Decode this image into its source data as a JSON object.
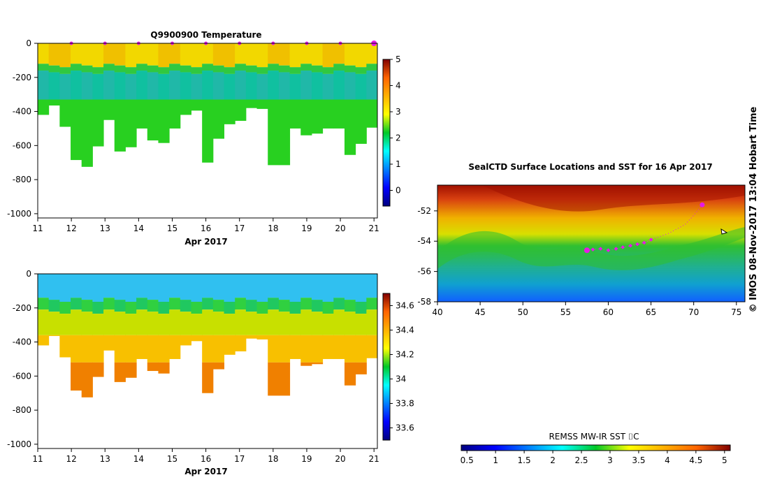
{
  "chart_data": [
    {
      "type": "heatmap",
      "id": "temperature",
      "title": "Q9900900  Temperature",
      "xlabel": "Apr 2017",
      "xlim": [
        11,
        21.1
      ],
      "ylim": [
        -1025,
        0
      ],
      "xticks": [
        "11",
        "12",
        "13",
        "14",
        "15",
        "16",
        "17",
        "18",
        "19",
        "20",
        "21"
      ],
      "yticks": [
        "0",
        "-200",
        "-400",
        "-600",
        "-800",
        "-1000"
      ],
      "ytick_values": [
        0,
        -200,
        -400,
        -600,
        -800,
        -1000
      ],
      "colorbar": {
        "range": [
          -0.6,
          5
        ],
        "ticks": [
          "0",
          "1",
          "2",
          "3",
          "4",
          "5"
        ],
        "tick_values": [
          0,
          1,
          2,
          3,
          4,
          5
        ]
      },
      "profile_markers_x": [
        12,
        13,
        14,
        15,
        16,
        17,
        18,
        19,
        20,
        21
      ],
      "profile_depths": [
        420,
        365,
        490,
        685,
        725,
        605,
        450,
        635,
        610,
        500,
        570,
        585,
        500,
        420,
        395,
        700,
        560,
        475,
        455,
        380,
        385,
        715,
        715,
        500,
        540,
        530,
        500,
        500,
        655,
        590,
        495
      ]
    },
    {
      "type": "heatmap",
      "id": "salinity",
      "title": "",
      "xlabel": "Apr 2017",
      "xlim": [
        11,
        21.1
      ],
      "ylim": [
        -1025,
        0
      ],
      "xticks": [
        "11",
        "12",
        "13",
        "14",
        "15",
        "16",
        "17",
        "18",
        "19",
        "20",
        "21"
      ],
      "yticks": [
        "0",
        "-200",
        "-400",
        "-600",
        "-800",
        "-1000"
      ],
      "ytick_values": [
        0,
        -200,
        -400,
        -600,
        -800,
        -1000
      ],
      "colorbar": {
        "range": [
          33.5,
          34.7
        ],
        "ticks": [
          "33.6",
          "33.8",
          "34",
          "34.2",
          "34.4",
          "34.6"
        ],
        "tick_values": [
          33.6,
          33.8,
          34,
          34.2,
          34.4,
          34.6
        ]
      },
      "profile_depths": [
        420,
        365,
        490,
        685,
        725,
        605,
        450,
        635,
        610,
        500,
        570,
        585,
        500,
        420,
        395,
        700,
        560,
        475,
        455,
        380,
        385,
        715,
        715,
        500,
        540,
        530,
        500,
        500,
        655,
        590,
        495
      ]
    },
    {
      "type": "heatmap",
      "id": "sst_map",
      "title": "SealCTD Surface Locations and SST for 16 Apr 2017",
      "xlim": [
        40,
        76
      ],
      "ylim": [
        -58,
        -50.3
      ],
      "xticks": [
        "40",
        "45",
        "50",
        "55",
        "60",
        "65",
        "70",
        "75"
      ],
      "xtick_values": [
        40,
        45,
        50,
        55,
        60,
        65,
        70,
        75
      ],
      "yticks": [
        "-52",
        "-54",
        "-56",
        "-58"
      ],
      "ytick_values": [
        -52,
        -54,
        -56,
        -58
      ],
      "track_lon": [
        57.5,
        58.2,
        59.1,
        60,
        60.9,
        61.7,
        62.6,
        63.4,
        64.2,
        65,
        66,
        67,
        68,
        69,
        70,
        71
      ],
      "track_lat": [
        -54.6,
        -54.55,
        -54.5,
        -54.6,
        -54.5,
        -54.4,
        -54.3,
        -54.2,
        -54.1,
        -53.9,
        -53.7,
        -53.5,
        -53.2,
        -52.9,
        -52.3,
        -51.6
      ],
      "colorbar": {
        "label": "REMSS MW-IR SST ⌷C",
        "range": [
          0.4,
          5.1
        ],
        "ticks": [
          "0.5",
          "1",
          "1.5",
          "2",
          "2.5",
          "3",
          "3.5",
          "4",
          "4.5",
          "5"
        ],
        "tick_values": [
          0.5,
          1,
          1.5,
          2,
          2.5,
          3,
          3.5,
          4,
          4.5,
          5
        ]
      }
    }
  ],
  "side_label": "© IMOS 08-Nov-2017 13:04 Hobart Time",
  "colors": {
    "accent": "#e619e6",
    "axis": "#000000"
  }
}
